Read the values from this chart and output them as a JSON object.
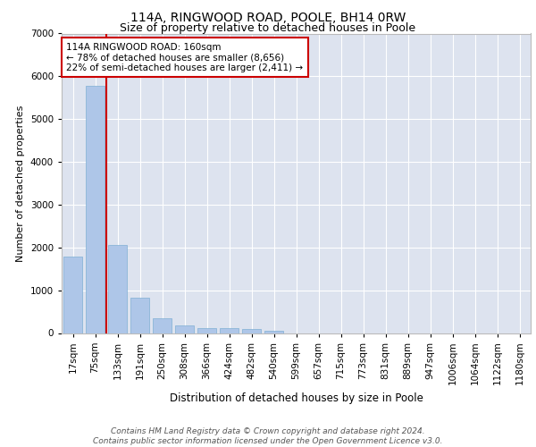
{
  "title1": "114A, RINGWOOD ROAD, POOLE, BH14 0RW",
  "title2": "Size of property relative to detached houses in Poole",
  "xlabel": "Distribution of detached houses by size in Poole",
  "ylabel": "Number of detached properties",
  "categories": [
    "17sqm",
    "75sqm",
    "133sqm",
    "191sqm",
    "250sqm",
    "308sqm",
    "366sqm",
    "424sqm",
    "482sqm",
    "540sqm",
    "599sqm",
    "657sqm",
    "715sqm",
    "773sqm",
    "831sqm",
    "889sqm",
    "947sqm",
    "1006sqm",
    "1064sqm",
    "1122sqm",
    "1180sqm"
  ],
  "values": [
    1780,
    5780,
    2060,
    820,
    340,
    185,
    120,
    105,
    90,
    55,
    0,
    0,
    0,
    0,
    0,
    0,
    0,
    0,
    0,
    0,
    0
  ],
  "bar_color": "#aec6e8",
  "bar_edge_color": "#7fafd4",
  "vline_x_index": 2,
  "vline_color": "#cc0000",
  "annotation_text": "114A RINGWOOD ROAD: 160sqm\n← 78% of detached houses are smaller (8,656)\n22% of semi-detached houses are larger (2,411) →",
  "annotation_box_color": "#cc0000",
  "ylim": [
    0,
    7000
  ],
  "yticks": [
    0,
    1000,
    2000,
    3000,
    4000,
    5000,
    6000,
    7000
  ],
  "background_color": "#dde3ef",
  "grid_color": "#ffffff",
  "footer": "Contains HM Land Registry data © Crown copyright and database right 2024.\nContains public sector information licensed under the Open Government Licence v3.0.",
  "title1_fontsize": 10,
  "title2_fontsize": 9,
  "xlabel_fontsize": 8.5,
  "ylabel_fontsize": 8,
  "tick_fontsize": 7.5,
  "footer_fontsize": 6.5,
  "ann_fontsize": 7.5
}
